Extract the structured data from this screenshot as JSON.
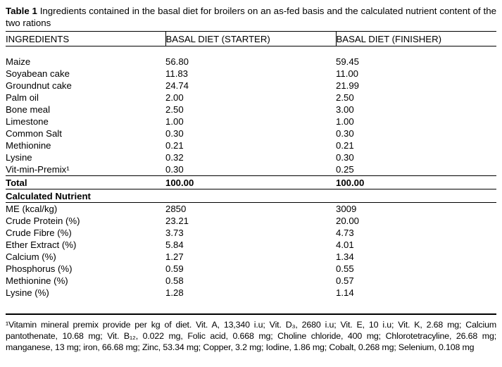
{
  "caption": {
    "label": "Table 1",
    "text": " Ingredients contained in the basal diet for broilers on an as-fed basis and the calculated nutrient content of the two rations"
  },
  "table": {
    "headers": {
      "ingredients": "INGREDIENTS",
      "starter": "BASAL DIET (STARTER)",
      "finisher": "BASAL DIET (FINISHER)"
    },
    "ingredients": [
      {
        "name": "Maize",
        "starter": "56.80",
        "finisher": "59.45"
      },
      {
        "name": "Soyabean cake",
        "starter": "11.83",
        "finisher": "11.00"
      },
      {
        "name": "Groundnut cake",
        "starter": "24.74",
        "finisher": "21.99"
      },
      {
        "name": "Palm oil",
        "starter": "2.00",
        "finisher": "2.50"
      },
      {
        "name": "Bone meal",
        "starter": "2.50",
        "finisher": "3.00"
      },
      {
        "name": "Limestone",
        "starter": "1.00",
        "finisher": "1.00"
      },
      {
        "name": "Common Salt",
        "starter": "0.30",
        "finisher": "0.30"
      },
      {
        "name": "Methionine",
        "starter": "0.21",
        "finisher": "0.21"
      },
      {
        "name": "Lysine",
        "starter": "0.32",
        "finisher": "0.30"
      },
      {
        "name": "Vit-min-Premix¹",
        "starter": "0.30",
        "finisher": "0.25"
      }
    ],
    "total": {
      "label": "Total",
      "starter": "100.00",
      "finisher": "100.00"
    },
    "section_label": "Calculated Nutrient",
    "nutrients": [
      {
        "name": "ME (kcal/kg)",
        "starter": "2850",
        "finisher": "3009"
      },
      {
        "name": "Crude Protein (%)",
        "starter": "23.21",
        "finisher": "20.00"
      },
      {
        "name": "Crude Fibre (%)",
        "starter": "3.73",
        "finisher": "4.73"
      },
      {
        "name": "Ether Extract (%)",
        "starter": "5.84",
        "finisher": "4.01"
      },
      {
        "name": "Calcium (%)",
        "starter": "1.27",
        "finisher": "1.34"
      },
      {
        "name": "Phosphorus (%)",
        "starter": "0.59",
        "finisher": "0.55"
      },
      {
        "name": "Methionine (%)",
        "starter": "0.58",
        "finisher": "0.57"
      },
      {
        "name": "Lysine (%)",
        "starter": "1.28",
        "finisher": "1.14"
      }
    ]
  },
  "footnote": "¹Vitamin mineral premix provide per kg of diet. Vit. A, 13,340 i.u; Vit. D₃, 2680 i.u; Vit. E, 10 i.u; Vit. K, 2.68 mg; Calcium pantothenate, 10.68 mg; Vit. B₁₂, 0.022 mg, Folic acid, 0.668 mg; Choline chloride, 400 mg; Chlorotetracyline, 26.68 mg; manganese, 13 mg; iron, 66.68 mg; Zinc, 53.34 mg; Copper, 3.2 mg; Iodine, 1.86 mg; Cobalt, 0.268 mg; Selenium, 0.108 mg"
}
